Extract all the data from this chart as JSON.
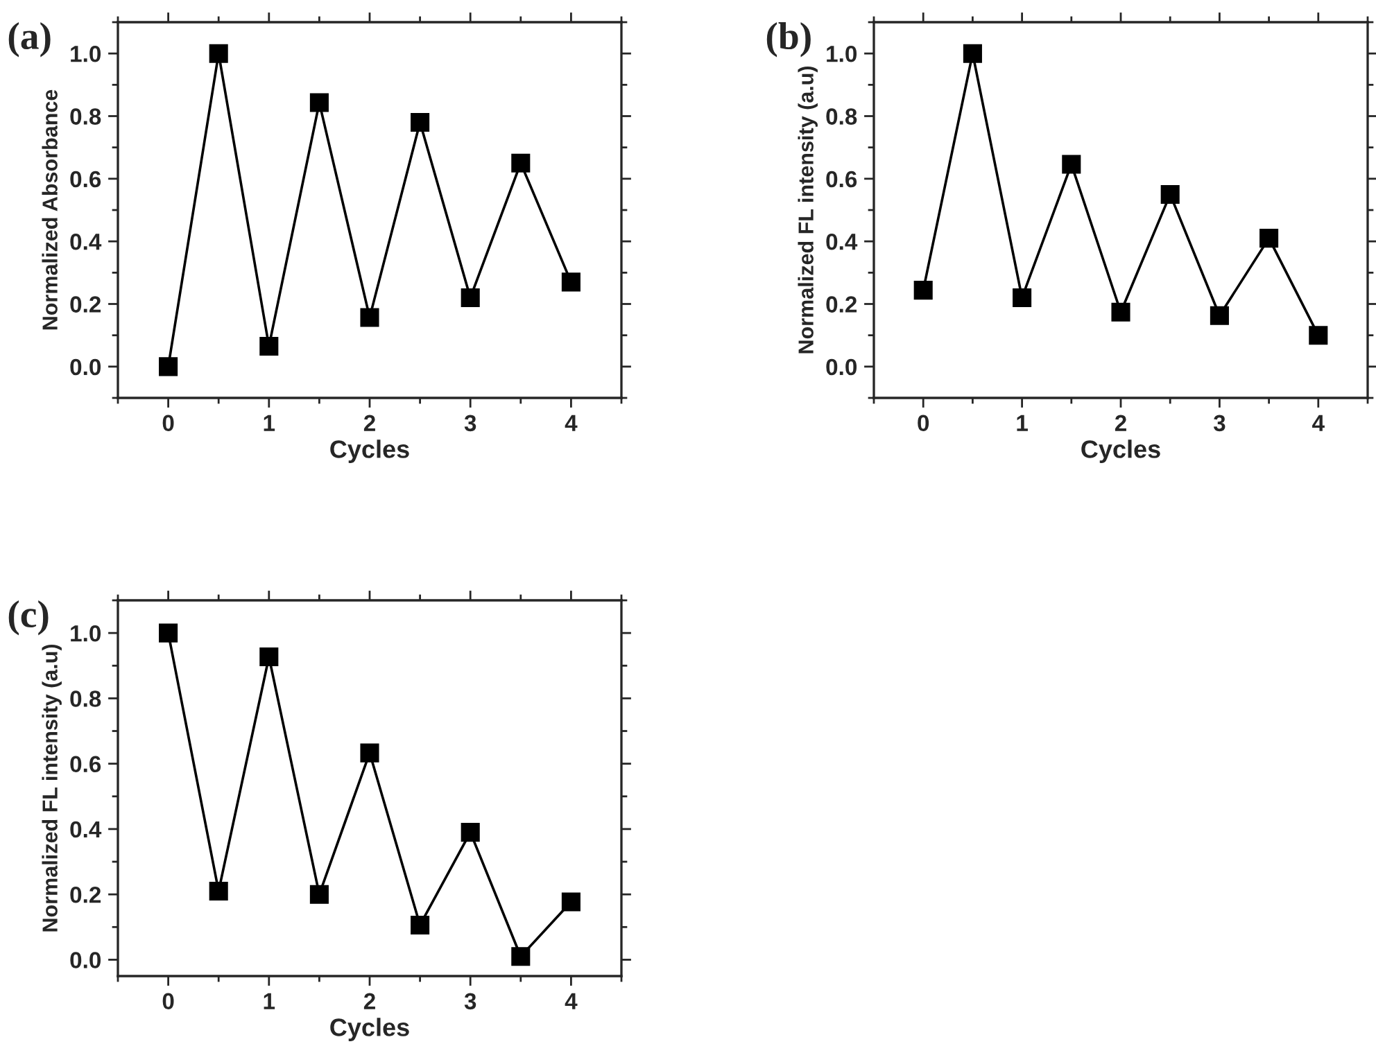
{
  "chart_data": [
    {
      "type": "line",
      "annotations": [
        "(a)"
      ],
      "xlabel": "Cycles",
      "ylabel": "Normalized Absorbance",
      "x": [
        0,
        0.5,
        1,
        1.5,
        2,
        2.5,
        3,
        3.5,
        4
      ],
      "xlim": [
        -0.5,
        4.5
      ],
      "xticks": [
        0,
        1,
        2,
        3,
        4
      ],
      "ylim": [
        -0.1,
        1.1
      ],
      "yticks": [
        {
          "value": 0,
          "label": "0.0"
        },
        {
          "value": 0.2,
          "label": "0.2"
        },
        {
          "value": 0.4,
          "label": "0.4"
        },
        {
          "value": 0.6,
          "label": "0.6"
        },
        {
          "value": 0.8,
          "label": "0.8"
        },
        {
          "value": 1,
          "label": "1.0"
        }
      ],
      "marker": "square",
      "line_style": "solid",
      "grid": false,
      "legend": false,
      "series": [
        {
          "color": "#000000",
          "values": [
            0.0,
            1.0,
            0.065,
            0.843,
            0.157,
            0.78,
            0.22,
            0.65,
            0.27
          ]
        }
      ]
    },
    {
      "type": "line",
      "annotations": [
        "(b)"
      ],
      "xlabel": "Cycles",
      "ylabel": "Normalized FL intensity (a.u)",
      "x": [
        0,
        0.5,
        1,
        1.5,
        2,
        2.5,
        3,
        3.5,
        4
      ],
      "xlim": [
        -0.5,
        4.5
      ],
      "xticks": [
        0,
        1,
        2,
        3,
        4
      ],
      "ylim": [
        -0.1,
        1.1
      ],
      "yticks": [
        {
          "value": 0,
          "label": "0.0"
        },
        {
          "value": 0.2,
          "label": "0.2"
        },
        {
          "value": 0.4,
          "label": "0.4"
        },
        {
          "value": 0.6,
          "label": "0.6"
        },
        {
          "value": 0.8,
          "label": "0.8"
        },
        {
          "value": 1,
          "label": "1.0"
        }
      ],
      "marker": "square",
      "line_style": "solid",
      "grid": false,
      "legend": false,
      "series": [
        {
          "color": "#000000",
          "values": [
            0.244,
            1.0,
            0.22,
            0.646,
            0.174,
            0.55,
            0.163,
            0.41,
            0.1
          ]
        }
      ]
    },
    {
      "type": "line",
      "annotations": [
        "(c)"
      ],
      "xlabel": "Cycles",
      "ylabel": "Normalized FL intensity (a.u)",
      "x": [
        0,
        0.5,
        1,
        1.5,
        2,
        2.5,
        3,
        3.5,
        4
      ],
      "xlim": [
        -0.5,
        4.5
      ],
      "xticks": [
        0,
        1,
        2,
        3,
        4
      ],
      "ylim": [
        -0.05,
        1.1
      ],
      "yticks": [
        {
          "value": 0,
          "label": "0.0"
        },
        {
          "value": 0.2,
          "label": "0.2"
        },
        {
          "value": 0.4,
          "label": "0.4"
        },
        {
          "value": 0.6,
          "label": "0.6"
        },
        {
          "value": 0.8,
          "label": "0.8"
        },
        {
          "value": 1,
          "label": "1.0"
        }
      ],
      "marker": "square",
      "line_style": "solid",
      "grid": false,
      "legend": false,
      "series": [
        {
          "color": "#000000",
          "values": [
            1.0,
            0.21,
            0.927,
            0.2,
            0.633,
            0.106,
            0.39,
            0.01,
            0.177
          ]
        }
      ]
    }
  ]
}
